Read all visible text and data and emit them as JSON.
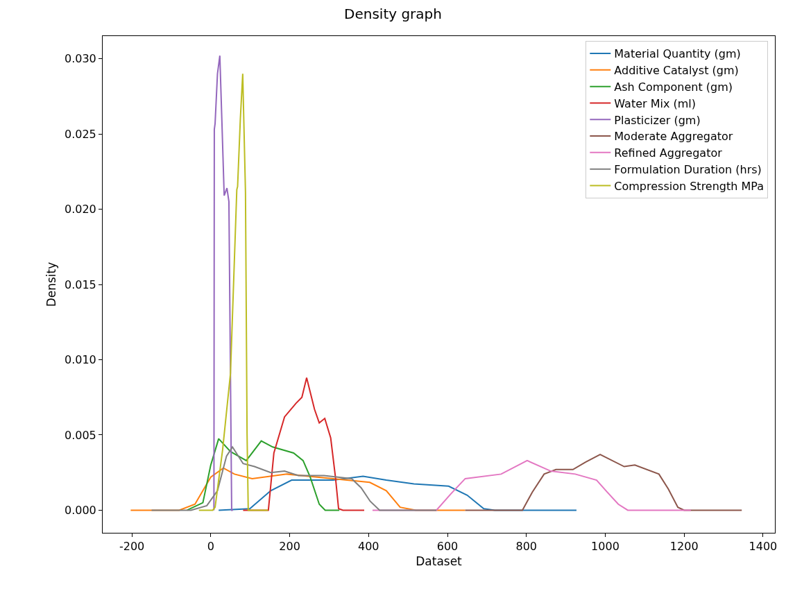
{
  "chart_data": {
    "type": "line",
    "title": "Density graph",
    "xlabel": "Dataset",
    "ylabel": "Density",
    "xlim": [
      -274,
      1430
    ],
    "xticks": [
      -200,
      0,
      200,
      400,
      600,
      800,
      1000,
      1200,
      1400
    ],
    "ylim": [
      -0.0015,
      0.0315
    ],
    "yticks": [
      {
        "value": 0,
        "label": "0.000"
      },
      {
        "value": 0.005,
        "label": "0.005"
      },
      {
        "value": 0.01,
        "label": "0.010"
      },
      {
        "value": 0.015,
        "label": "0.015"
      },
      {
        "value": 0.02,
        "label": "0.020"
      },
      {
        "value": 0.025,
        "label": "0.025"
      },
      {
        "value": 0.03,
        "label": "0.030"
      }
    ],
    "legend": "top right",
    "line_style": "solid",
    "marker": "none",
    "series": [
      {
        "name": "Material Quantity (gm)",
        "color": "#1f77b4",
        "x": [
          20,
          99,
          152,
          205,
          310,
          386,
          445,
          515,
          603,
          650,
          692,
          720,
          927
        ],
        "values": [
          0,
          0.0001,
          0.0013,
          0.002,
          0.002,
          0.00226,
          0.002,
          0.00175,
          0.0016,
          0.001,
          0.0001,
          0,
          0
        ]
      },
      {
        "name": "Additive Catalyst (gm)",
        "color": "#ff7f0e",
        "x": [
          -203,
          -80,
          -40,
          0,
          32,
          60,
          105,
          193,
          310,
          403,
          445,
          480,
          520,
          645
        ],
        "values": [
          0,
          0,
          0.0004,
          0.0022,
          0.0028,
          0.0024,
          0.0021,
          0.0024,
          0.0021,
          0.00185,
          0.0013,
          0.0002,
          0,
          0
        ]
      },
      {
        "name": "Ash Component (gm)",
        "color": "#2ca02c",
        "x": [
          -60,
          -20,
          0,
          20,
          50,
          90,
          128,
          157,
          210,
          234,
          252,
          275,
          290,
          326
        ],
        "values": [
          0,
          0.0005,
          0.003,
          0.00475,
          0.0039,
          0.0033,
          0.0046,
          0.0042,
          0.0038,
          0.0033,
          0.0022,
          0.0004,
          0,
          0
        ]
      },
      {
        "name": "Water Mix (ml)",
        "color": "#d62728",
        "x": [
          82,
          146,
          160,
          187,
          216,
          231,
          243,
          263,
          275,
          289,
          304,
          316,
          324,
          335,
          389
        ],
        "values": [
          0,
          0,
          0.0038,
          0.0062,
          0.0071,
          0.0075,
          0.0088,
          0.0067,
          0.0058,
          0.0061,
          0.0048,
          0.0022,
          0.0001,
          0,
          0
        ]
      },
      {
        "name": "Plasticizer (gm)",
        "color": "#9467bd",
        "x": [
          8,
          9,
          11,
          17,
          23,
          28,
          34,
          41,
          46,
          53,
          56
        ],
        "values": [
          0,
          0.0253,
          0.0257,
          0.029,
          0.0302,
          0.026,
          0.0209,
          0.0214,
          0.0205,
          0,
          0
        ]
      },
      {
        "name": "Moderate Aggregator",
        "color": "#8c564b",
        "x": [
          645,
          790,
          815,
          845,
          875,
          918,
          950,
          987,
          1048,
          1075,
          1136,
          1160,
          1184,
          1200,
          1346
        ],
        "values": [
          0,
          0,
          0.0012,
          0.0024,
          0.0027,
          0.0027,
          0.0032,
          0.0037,
          0.0029,
          0.003,
          0.0024,
          0.0014,
          0.0002,
          0,
          0
        ]
      },
      {
        "name": "Refined Aggregator",
        "color": "#e377c2",
        "x": [
          410,
          572,
          609,
          645,
          736,
          802,
          862,
          924,
          978,
          1005,
          1033,
          1057,
          1217
        ],
        "values": [
          0,
          0,
          0.0011,
          0.0021,
          0.0024,
          0.0033,
          0.0026,
          0.0024,
          0.002,
          0.0012,
          0.0004,
          0,
          0
        ]
      },
      {
        "name": "Formulation Duration (hrs)",
        "color": "#7f7f7f",
        "x": [
          -150,
          -50,
          -10,
          17,
          40,
          55,
          82,
          111,
          152,
          187,
          222,
          287,
          357,
          381,
          404,
          428,
          572
        ],
        "values": [
          0,
          0,
          0.0003,
          0.0013,
          0.0036,
          0.0042,
          0.0031,
          0.0029,
          0.0025,
          0.0026,
          0.0023,
          0.0023,
          0.0021,
          0.0015,
          0.0006,
          0,
          0
        ]
      },
      {
        "name": "Compression Strength MPa",
        "color": "#bcbd22",
        "x": [
          -30,
          5,
          11,
          30,
          50,
          66,
          68,
          75,
          81,
          88,
          92,
          95,
          145
        ],
        "values": [
          0,
          0,
          0.0002,
          0.004,
          0.0091,
          0.0213,
          0.0215,
          0.026,
          0.029,
          0.0211,
          0.0051,
          0,
          0
        ]
      }
    ]
  }
}
